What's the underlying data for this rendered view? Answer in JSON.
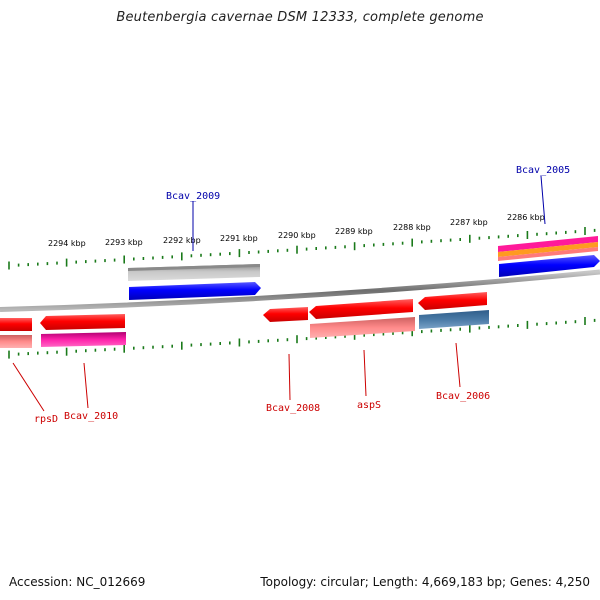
{
  "title": "Beutenbergia cavernae DSM 12333, complete genome",
  "footer": {
    "accession": "Accession: NC_012669",
    "summary": "Topology: circular; Length: 4,669,183 bp; Genes: 4,250"
  },
  "colors": {
    "backbone": "#808080",
    "tick": "#1a7a1a",
    "cds": "#ff0000",
    "cds_alt": "#ff0099",
    "rna": "#0000ff",
    "grey_feature": "#b0b0b0",
    "steelblue_feature": "#4a7aa6",
    "label_top": "#0000aa",
    "label_bottom": "#cc0000"
  },
  "scale": {
    "unit": "kbp",
    "tick_labels": [
      "2294 kbp",
      "2293 kbp",
      "2292 kbp",
      "2291 kbp",
      "2290 kbp",
      "2289 kbp",
      "2288 kbp",
      "2287 kbp",
      "2286 kbp"
    ]
  },
  "gene_labels_top": [
    "Bcav_2009",
    "Bcav_2005"
  ],
  "gene_labels_bottom": [
    "rpsD",
    "Bcav_2010",
    "Bcav_2008",
    "aspS",
    "Bcav_2006"
  ]
}
